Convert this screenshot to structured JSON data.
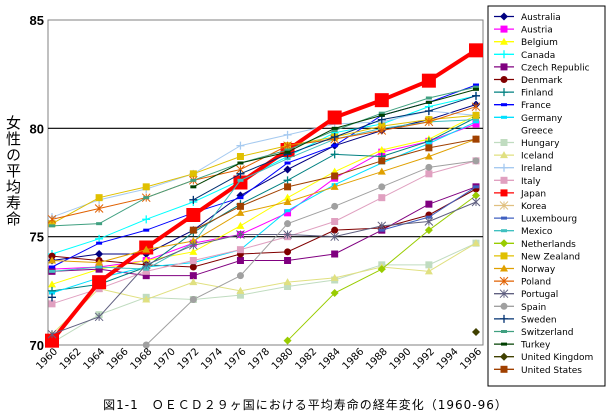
{
  "chart_data": {
    "type": "line",
    "title": "図1-1　ＯＥＣＤ２９ヶ国における平均寿命の経年変化（1960-96）",
    "ylabel": "女性の平均寿命",
    "xlabel": "",
    "ylim": [
      70,
      85
    ],
    "yticks": [
      "70",
      "75",
      "80",
      "85"
    ],
    "ytick_values": [
      70,
      75,
      80,
      85
    ],
    "gridlines": [
      75,
      80
    ],
    "xticks": [
      "1960",
      "1962",
      "1964",
      "1966",
      "1968",
      "1970",
      "1972",
      "1974",
      "1976",
      "1978",
      "1980",
      "1982",
      "1984",
      "1986",
      "1988",
      "1990",
      "1992",
      "1994",
      "1996"
    ],
    "xtick_values": [
      1960,
      1962,
      1964,
      1966,
      1968,
      1970,
      1972,
      1974,
      1976,
      1978,
      1980,
      1982,
      1984,
      1986,
      1988,
      1990,
      1992,
      1994,
      1996
    ],
    "x": [
      1960,
      1964,
      1968,
      1972,
      1976,
      1980,
      1984,
      1988,
      1992,
      1996
    ],
    "legend_position": "right",
    "series": [
      {
        "name": "Australia",
        "color": "#000080",
        "marker": "diamond",
        "values": [
          73.9,
          74.2,
          74.2,
          75.3,
          76.9,
          78.1,
          79.2,
          79.9,
          80.4,
          81.1
        ]
      },
      {
        "name": "Austria",
        "color": "#ff00ff",
        "marker": "square",
        "values": [
          73.5,
          73.6,
          73.9,
          74.7,
          75.1,
          76.1,
          77.7,
          78.9,
          79.4,
          80.2
        ]
      },
      {
        "name": "Belgium",
        "color": "#ffff00",
        "marker": "triangle",
        "values": [
          72.8,
          73.5,
          73.9,
          74.3,
          75.5,
          76.8,
          78.0,
          79.0,
          79.5,
          80.6
        ]
      },
      {
        "name": "Canada",
        "color": "#00ffff",
        "marker": "plus",
        "values": [
          74.2,
          74.9,
          75.8,
          76.6,
          77.6,
          78.7,
          79.8,
          80.2,
          81.0,
          81.5
        ]
      },
      {
        "name": "Czech Republic",
        "color": "#800080",
        "marker": "square",
        "values": [
          73.4,
          73.5,
          73.2,
          73.2,
          73.9,
          73.9,
          74.2,
          75.3,
          76.5,
          77.3
        ]
      },
      {
        "name": "Denmark",
        "color": "#800000",
        "marker": "circle",
        "values": [
          74.1,
          73.9,
          73.7,
          73.6,
          74.2,
          74.3,
          75.3,
          75.4,
          76.0,
          77.2
        ]
      },
      {
        "name": "Finland",
        "color": "#008080",
        "marker": "plus",
        "values": [
          72.5,
          72.8,
          73.6,
          75.2,
          76.5,
          77.6,
          78.8,
          78.7,
          79.4,
          80.5
        ]
      },
      {
        "name": "France",
        "color": "#0000ff",
        "marker": "dash",
        "values": [
          73.6,
          74.7,
          75.3,
          76.1,
          76.8,
          78.4,
          79.2,
          80.6,
          81.2,
          82.0
        ]
      },
      {
        "name": "Germany",
        "color": "#00e0ff",
        "marker": "dash",
        "values": [
          72.4,
          73.1,
          73.6,
          73.8,
          74.4,
          76.2,
          77.4,
          78.4,
          79.3,
          80.3
        ]
      },
      {
        "name": "Greece",
        "color": "none",
        "marker": "none",
        "values": [
          null,
          null,
          null,
          null,
          null,
          null,
          null,
          null,
          null,
          null
        ]
      },
      {
        "name": "Hungary",
        "color": "#c0dcc0",
        "marker": "square",
        "values": [
          70.1,
          71.4,
          72.2,
          72.1,
          72.3,
          72.7,
          73.0,
          73.7,
          73.7,
          74.7
        ]
      },
      {
        "name": "Iceland",
        "color": "#e0e080",
        "marker": "triangle",
        "values": [
          70.5,
          72.6,
          72.1,
          72.9,
          72.5,
          72.9,
          73.1,
          73.6,
          73.4,
          74.7
        ]
      },
      {
        "name": "Ireland",
        "color": "#a6caf0",
        "marker": "plus",
        "values": [
          75.9,
          76.7,
          77.2,
          77.9,
          79.2,
          79.7,
          80.2,
          80.3,
          80.8,
          80.6
        ]
      },
      {
        "name": "Italy",
        "color": "#e0a0c0",
        "marker": "square",
        "values": [
          71.9,
          72.6,
          73.4,
          73.9,
          74.4,
          75.0,
          75.7,
          76.8,
          77.9,
          78.5
        ]
      },
      {
        "name": "Japan",
        "color": "#ff0000",
        "marker": "bigsquare",
        "values": [
          70.2,
          72.9,
          74.5,
          76.0,
          77.5,
          79.0,
          80.5,
          81.3,
          82.2,
          83.6
        ]
      },
      {
        "name": "Korea",
        "color": "#e0c080",
        "marker": "star",
        "values": [
          null,
          null,
          null,
          null,
          null,
          null,
          null,
          null,
          null,
          null
        ]
      },
      {
        "name": "Luxembourg",
        "color": "#4060c0",
        "marker": "dash",
        "values": [
          null,
          null,
          null,
          null,
          null,
          null,
          null,
          75.3,
          75.9,
          77.3
        ]
      },
      {
        "name": "Mexico",
        "color": "#40c0c0",
        "marker": "dash",
        "values": [
          73.4,
          73.6,
          73.5,
          74.7,
          77.6,
          78.6,
          79.5,
          80.0,
          80.3,
          80.4
        ]
      },
      {
        "name": "Netherlands",
        "color": "#99cc00",
        "marker": "diamond",
        "values": [
          null,
          null,
          null,
          null,
          null,
          70.2,
          72.4,
          73.5,
          75.3,
          76.9
        ]
      },
      {
        "name": "New Zealand",
        "color": "#e0c000",
        "marker": "square",
        "values": [
          75.6,
          76.8,
          77.3,
          77.9,
          78.7,
          79.2,
          79.6,
          80.1,
          80.4,
          80.6
        ]
      },
      {
        "name": "Norway",
        "color": "#e0a000",
        "marker": "triangle",
        "values": [
          73.9,
          73.8,
          74.4,
          74.8,
          76.1,
          76.6,
          77.3,
          78.0,
          78.7,
          79.5
        ]
      },
      {
        "name": "Poland",
        "color": "#e06000",
        "marker": "star",
        "values": [
          75.8,
          76.3,
          76.8,
          77.6,
          78.1,
          79.2,
          79.5,
          79.9,
          80.3,
          81.0
        ]
      },
      {
        "name": "Portugal",
        "color": "#606080",
        "marker": "star",
        "values": [
          70.5,
          71.3,
          73.7,
          74.6,
          75.1,
          75.1,
          75.0,
          75.5,
          75.7,
          76.6
        ]
      },
      {
        "name": "Spain",
        "color": "#a0a0a0",
        "marker": "circle",
        "values": [
          null,
          null,
          70.0,
          72.1,
          73.2,
          75.6,
          76.4,
          77.3,
          78.2,
          78.5
        ]
      },
      {
        "name": "Sweden",
        "color": "#003070",
        "marker": "plus",
        "values": [
          72.2,
          null,
          null,
          76.7,
          77.9,
          78.8,
          79.6,
          80.4,
          80.8,
          81.5
        ]
      },
      {
        "name": "Switzerland",
        "color": "#40a080",
        "marker": "dash",
        "values": [
          75.5,
          75.6,
          76.8,
          77.6,
          78.4,
          79.0,
          79.9,
          80.7,
          81.4,
          81.9
        ]
      },
      {
        "name": "Turkey",
        "color": "#004000",
        "marker": "dash",
        "values": [
          null,
          null,
          null,
          77.3,
          78.4,
          78.9,
          80.0,
          80.6,
          81.2,
          81.8
        ]
      },
      {
        "name": "United Kingdom",
        "color": "#404000",
        "marker": "diamond",
        "values": [
          null,
          null,
          null,
          null,
          null,
          null,
          null,
          null,
          null,
          70.6
        ]
      },
      {
        "name": "United States",
        "color": "#a04000",
        "marker": "square",
        "values": [
          null,
          null,
          null,
          75.3,
          76.4,
          77.3,
          77.8,
          78.5,
          79.1,
          79.5
        ]
      }
    ]
  }
}
